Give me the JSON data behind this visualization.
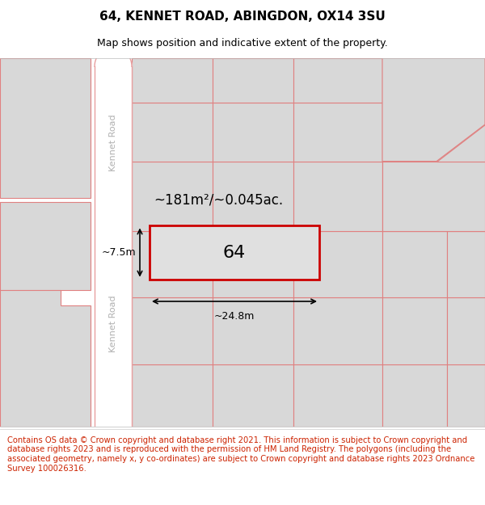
{
  "title_line1": "64, KENNET ROAD, ABINGDON, OX14 3SU",
  "title_line2": "Map shows position and indicative extent of the property.",
  "footer_text": "Contains OS data © Crown copyright and database right 2021. This information is subject to Crown copyright and database rights 2023 and is reproduced with the permission of HM Land Registry. The polygons (including the associated geometry, namely x, y co-ordinates) are subject to Crown copyright and database rights 2023 Ordnance Survey 100026316.",
  "bg_color": "#e8e8e8",
  "road_fill": "#ffffff",
  "road_color": "#e8a0a0",
  "parcel_fill": "#d8d8d8",
  "parcel_edge": "#e08080",
  "property_color": "#cc0000",
  "road_label": "Kennet Road",
  "property_number": "64",
  "area_label": "~181m²/~0.045ac.",
  "width_label": "~24.8m",
  "height_label": "~7.5m",
  "title_fontsize": 11,
  "subtitle_fontsize": 9,
  "footer_fontsize": 7.2,
  "road_label_color": "#b0b0b0",
  "footer_color": "#cc2200"
}
